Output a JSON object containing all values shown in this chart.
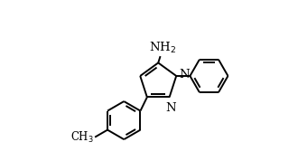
{
  "bg_color": "#ffffff",
  "line_color": "#000000",
  "line_width": 1.4,
  "font_size": 9.5,
  "xlim": [
    0,
    10
  ],
  "ylim": [
    0,
    6
  ],
  "figsize": [
    3.3,
    1.78
  ],
  "dpi": 100
}
